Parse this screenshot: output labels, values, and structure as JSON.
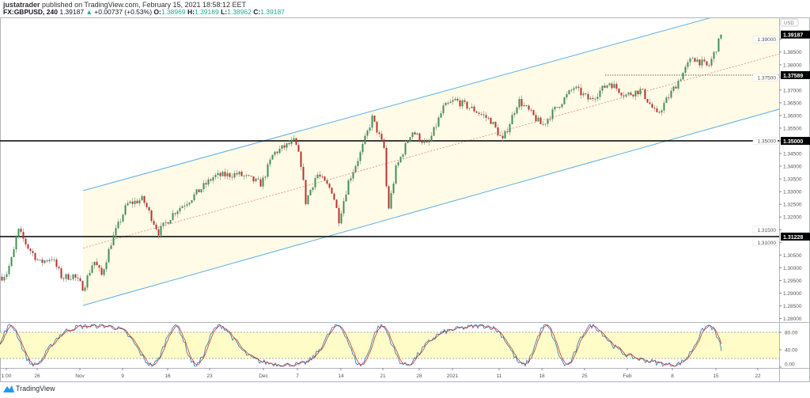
{
  "header": {
    "author": "justatrader",
    "published": "published on TradingView.com, February 15, 2021 18:58:12 EET",
    "symbol": "FX:GBPUSD, 240",
    "last": "1.39187",
    "change": "+0.00737 (+0.53%)",
    "o_label": "O:",
    "o": "1.38969",
    "h_label": "H:",
    "h": "1.39189",
    "l_label": "L:",
    "l": "1.38962",
    "c_label": "C:",
    "c": "1.39187"
  },
  "price_axis": {
    "currency": "USD",
    "ticks": [
      "1.39000",
      "1.38500",
      "1.38000",
      "1.37500",
      "1.37000",
      "1.36500",
      "1.36000",
      "1.35500",
      "1.35000",
      "1.34500",
      "1.34000",
      "1.33500",
      "1.33000",
      "1.32500",
      "1.32000",
      "1.31500",
      "1.31000",
      "1.30500",
      "1.30000",
      "1.29500",
      "1.29000",
      "1.28500",
      "1.28000"
    ],
    "tick_values": [
      1.39,
      1.385,
      1.38,
      1.375,
      1.37,
      1.365,
      1.36,
      1.355,
      1.35,
      1.345,
      1.34,
      1.335,
      1.33,
      1.325,
      1.32,
      1.315,
      1.31,
      1.305,
      1.3,
      1.295,
      1.29,
      1.285,
      1.28
    ],
    "labels": [
      {
        "text": "1.39187",
        "value": 1.39187
      },
      {
        "text": "1.37589",
        "value": 1.37589
      },
      {
        "text": "1.35000",
        "value": 1.35
      },
      {
        "text": "1.31228",
        "value": 1.31228
      }
    ]
  },
  "osc_axis": {
    "ticks": [
      "80.00",
      "40.00",
      "0.00"
    ],
    "values": [
      80,
      40,
      0
    ]
  },
  "time_axis": [
    "1:00",
    "26",
    "Nov",
    "9",
    "16",
    "23",
    "Dec",
    "7",
    "14",
    "21",
    "28",
    "2021",
    "11",
    "18",
    "25",
    "Feb",
    "8",
    "15",
    "22"
  ],
  "price_anchors": [
    [
      0,
      1.296
    ],
    [
      8,
      1.298
    ],
    [
      16,
      1.305
    ],
    [
      22,
      1.315
    ],
    [
      35,
      1.308
    ],
    [
      50,
      1.302
    ],
    [
      65,
      1.304
    ],
    [
      78,
      1.296
    ],
    [
      92,
      1.297
    ],
    [
      105,
      1.292
    ],
    [
      118,
      1.303
    ],
    [
      128,
      1.297
    ],
    [
      140,
      1.31
    ],
    [
      160,
      1.325
    ],
    [
      180,
      1.327
    ],
    [
      200,
      1.314
    ],
    [
      220,
      1.322
    ],
    [
      240,
      1.327
    ],
    [
      270,
      1.336
    ],
    [
      300,
      1.337
    ],
    [
      330,
      1.333
    ],
    [
      345,
      1.345
    ],
    [
      372,
      1.35
    ],
    [
      380,
      1.341
    ],
    [
      386,
      1.326
    ],
    [
      400,
      1.337
    ],
    [
      420,
      1.33
    ],
    [
      428,
      1.319
    ],
    [
      440,
      1.334
    ],
    [
      455,
      1.345
    ],
    [
      470,
      1.359
    ],
    [
      485,
      1.347
    ],
    [
      490,
      1.322
    ],
    [
      500,
      1.339
    ],
    [
      520,
      1.354
    ],
    [
      540,
      1.348
    ],
    [
      560,
      1.363
    ],
    [
      575,
      1.366
    ],
    [
      600,
      1.362
    ],
    [
      620,
      1.358
    ],
    [
      635,
      1.35
    ],
    [
      655,
      1.366
    ],
    [
      685,
      1.356
    ],
    [
      700,
      1.362
    ],
    [
      725,
      1.371
    ],
    [
      745,
      1.366
    ],
    [
      770,
      1.373
    ],
    [
      790,
      1.368
    ],
    [
      810,
      1.37
    ],
    [
      830,
      1.36
    ],
    [
      850,
      1.37
    ],
    [
      875,
      1.383
    ],
    [
      895,
      1.379
    ],
    [
      912,
      1.3919
    ]
  ],
  "colors": {
    "up": "#3f8f55",
    "down": "#b8322a",
    "channel": "#5aafe6",
    "fill": "#fffbe6",
    "mid": "#f08080",
    "band": "#fffcc8",
    "stoch_k": "#2a6fb5",
    "stoch_d": "#c0392b"
  },
  "branding": "TradingView"
}
